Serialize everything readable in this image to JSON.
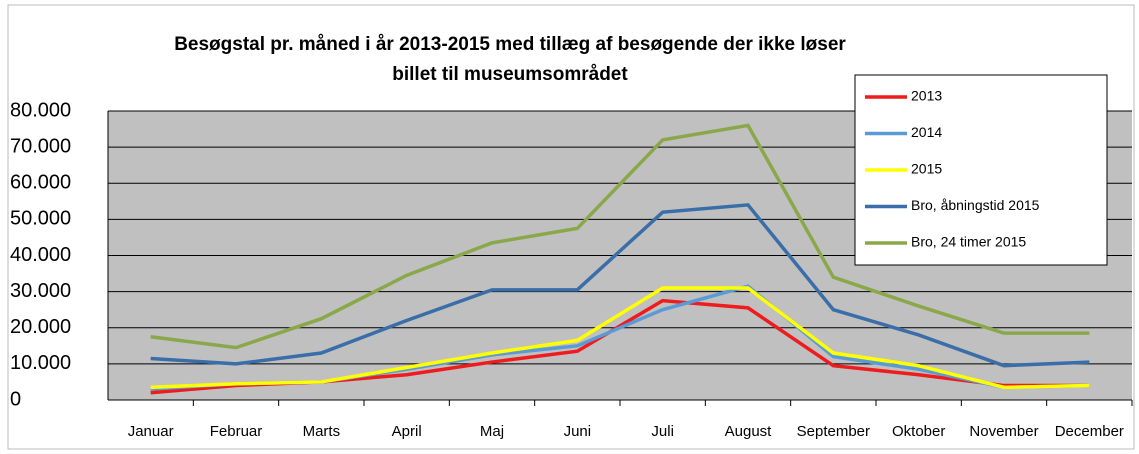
{
  "chart_data": {
    "type": "line",
    "title": "Besøgstal pr. måned i år 2013-2015 med tillæg af besøgende der ikke løser billet til museumsområdet",
    "categories": [
      "Januar",
      "Februar",
      "Marts",
      "April",
      "Maj",
      "Juni",
      "Juli",
      "August",
      "September",
      "Oktober",
      "November",
      "December"
    ],
    "series": [
      {
        "name": "2013",
        "color": "#ee1c1c",
        "values": [
          2000,
          4000,
          5000,
          7000,
          10500,
          13500,
          27500,
          25500,
          9500,
          7000,
          4000,
          4000
        ]
      },
      {
        "name": "2014",
        "color": "#5b9bd5",
        "values": [
          3000,
          4500,
          5000,
          8500,
          12500,
          15000,
          25000,
          31500,
          12000,
          8500,
          3500,
          4000
        ]
      },
      {
        "name": "2015",
        "color": "#ffff00",
        "values": [
          3500,
          4500,
          5000,
          9000,
          13000,
          16500,
          31000,
          31000,
          13000,
          9500,
          3500,
          4000
        ]
      },
      {
        "name": "Bro, åbningstid 2015",
        "color": "#3a6ea8",
        "values": [
          11500,
          10000,
          13000,
          22000,
          30500,
          30500,
          52000,
          54000,
          25000,
          18000,
          9500,
          10500
        ]
      },
      {
        "name": "Bro, 24 timer 2015",
        "color": "#8aa84a",
        "values": [
          17500,
          14500,
          22500,
          34500,
          43500,
          47500,
          72000,
          76000,
          34000,
          26000,
          18500,
          18500
        ]
      }
    ],
    "ylim": [
      0,
      80000
    ],
    "yticks": [
      0,
      {
        "value": 10000,
        "label": "10.000"
      },
      {
        "value": 20000,
        "label": "20.000"
      },
      {
        "value": 30000,
        "label": "30.000"
      },
      {
        "value": 40000,
        "label": "40.000"
      },
      {
        "value": 50000,
        "label": "50.000"
      },
      {
        "value": 60000,
        "label": "60.000"
      },
      {
        "value": 70000,
        "label": "70.000"
      },
      {
        "value": 80000,
        "label": "80.000"
      }
    ],
    "grid": true,
    "legend": "top-right"
  }
}
